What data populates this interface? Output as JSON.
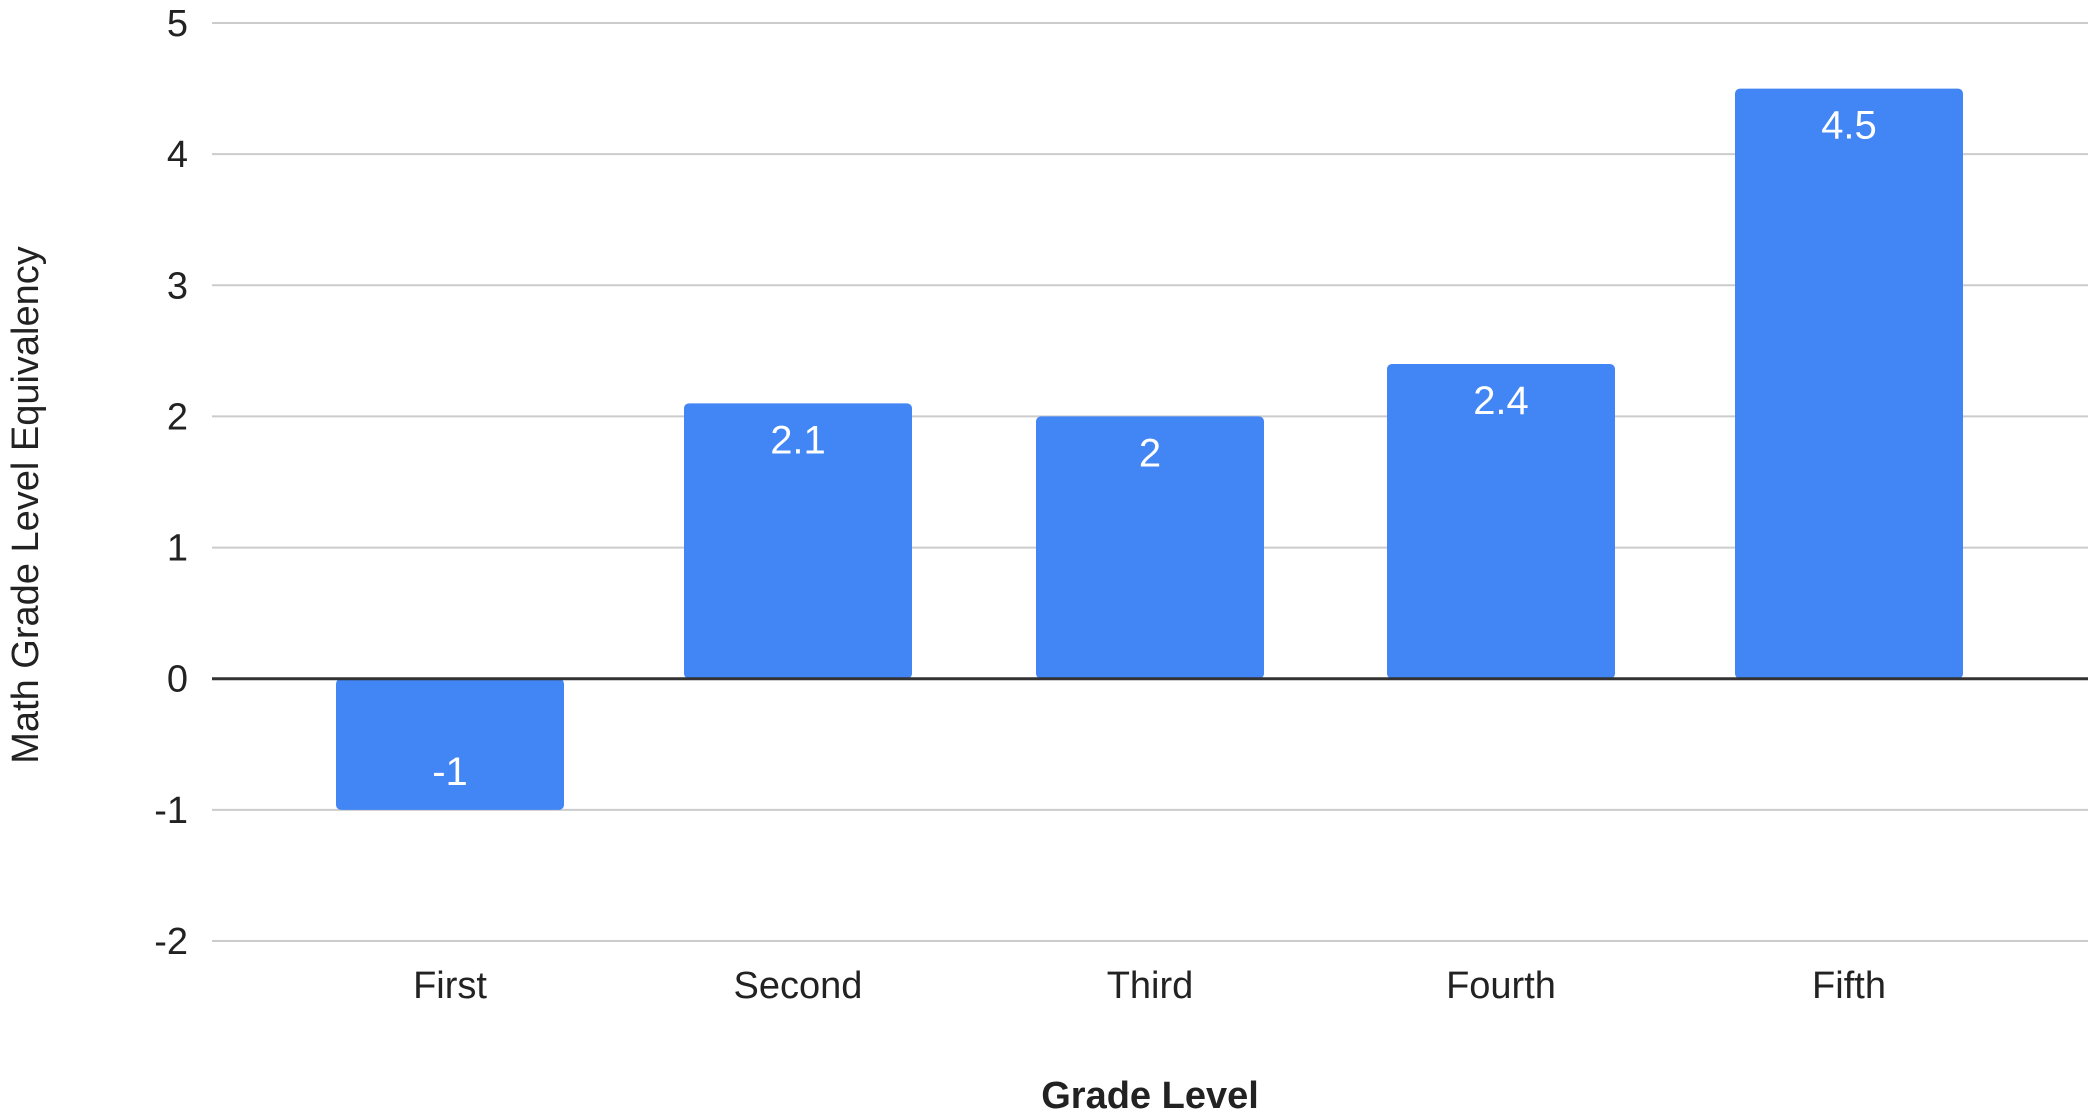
{
  "chart_data": {
    "type": "bar",
    "categories": [
      "First",
      "Second",
      "Third",
      "Fourth",
      "Fifth"
    ],
    "values": [
      -1,
      2.1,
      2,
      2.4,
      4.5
    ],
    "data_labels": [
      "-1",
      "2.1",
      "2",
      "2.4",
      "4.5"
    ],
    "xlabel": "Grade Level",
    "ylabel": "Math Grade Level Equivalency",
    "ylim": [
      -2,
      5
    ],
    "yticks": [
      -2,
      -1,
      0,
      1,
      2,
      3,
      4,
      5
    ],
    "grid": true,
    "legend": "none",
    "colors": {
      "bar": "#4285f4",
      "gridline": "#cccccc",
      "zero_line": "#333333",
      "text": "#222222",
      "data_label": "#ffffff"
    }
  }
}
